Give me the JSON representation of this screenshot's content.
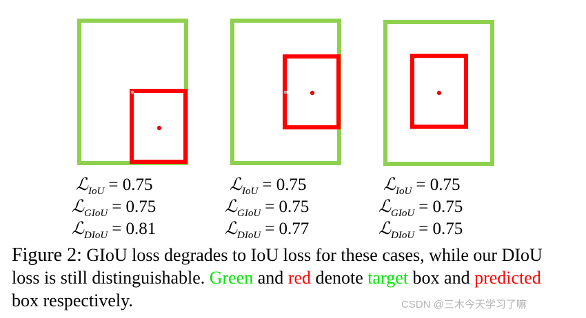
{
  "colors": {
    "target": "#8fd14f",
    "predicted": "#ff0000",
    "center_dot": "#dd1111",
    "highlight_green": "#00e600",
    "highlight_red": "#ff0000"
  },
  "cases": [
    {
      "metrics": [
        {
          "symbol": "ℒ",
          "sub": "IoU",
          "value": "= 0.75"
        },
        {
          "symbol": "ℒ",
          "sub": "GIoU",
          "value": "= 0.75"
        },
        {
          "symbol": "ℒ",
          "sub": "DIoU",
          "value": "= 0.81"
        }
      ]
    },
    {
      "metrics": [
        {
          "symbol": "ℒ",
          "sub": "IoU",
          "value": "= 0.75"
        },
        {
          "symbol": "ℒ",
          "sub": "GIoU",
          "value": "= 0.75"
        },
        {
          "symbol": "ℒ",
          "sub": "DIoU",
          "value": "= 0.77"
        }
      ]
    },
    {
      "metrics": [
        {
          "symbol": "ℒ",
          "sub": "IoU",
          "value": "= 0.75"
        },
        {
          "symbol": "ℒ",
          "sub": "GIoU",
          "value": "= 0.75"
        },
        {
          "symbol": "ℒ",
          "sub": "DIoU",
          "value": "= 0.75"
        }
      ]
    }
  ],
  "caption": {
    "label": "Figure 2:",
    "text1": " GIoU loss degrades to IoU loss for these cases, while our DIoU loss is still distinguishable. ",
    "green_word": "Green",
    "text2": " and ",
    "red_word": "red",
    "text3": " denote ",
    "target_word": "target",
    "text4": " box and ",
    "predicted_word": "predicted",
    "text5": " box respectively."
  },
  "watermark": "CSDN @三木今天学习了嘛"
}
